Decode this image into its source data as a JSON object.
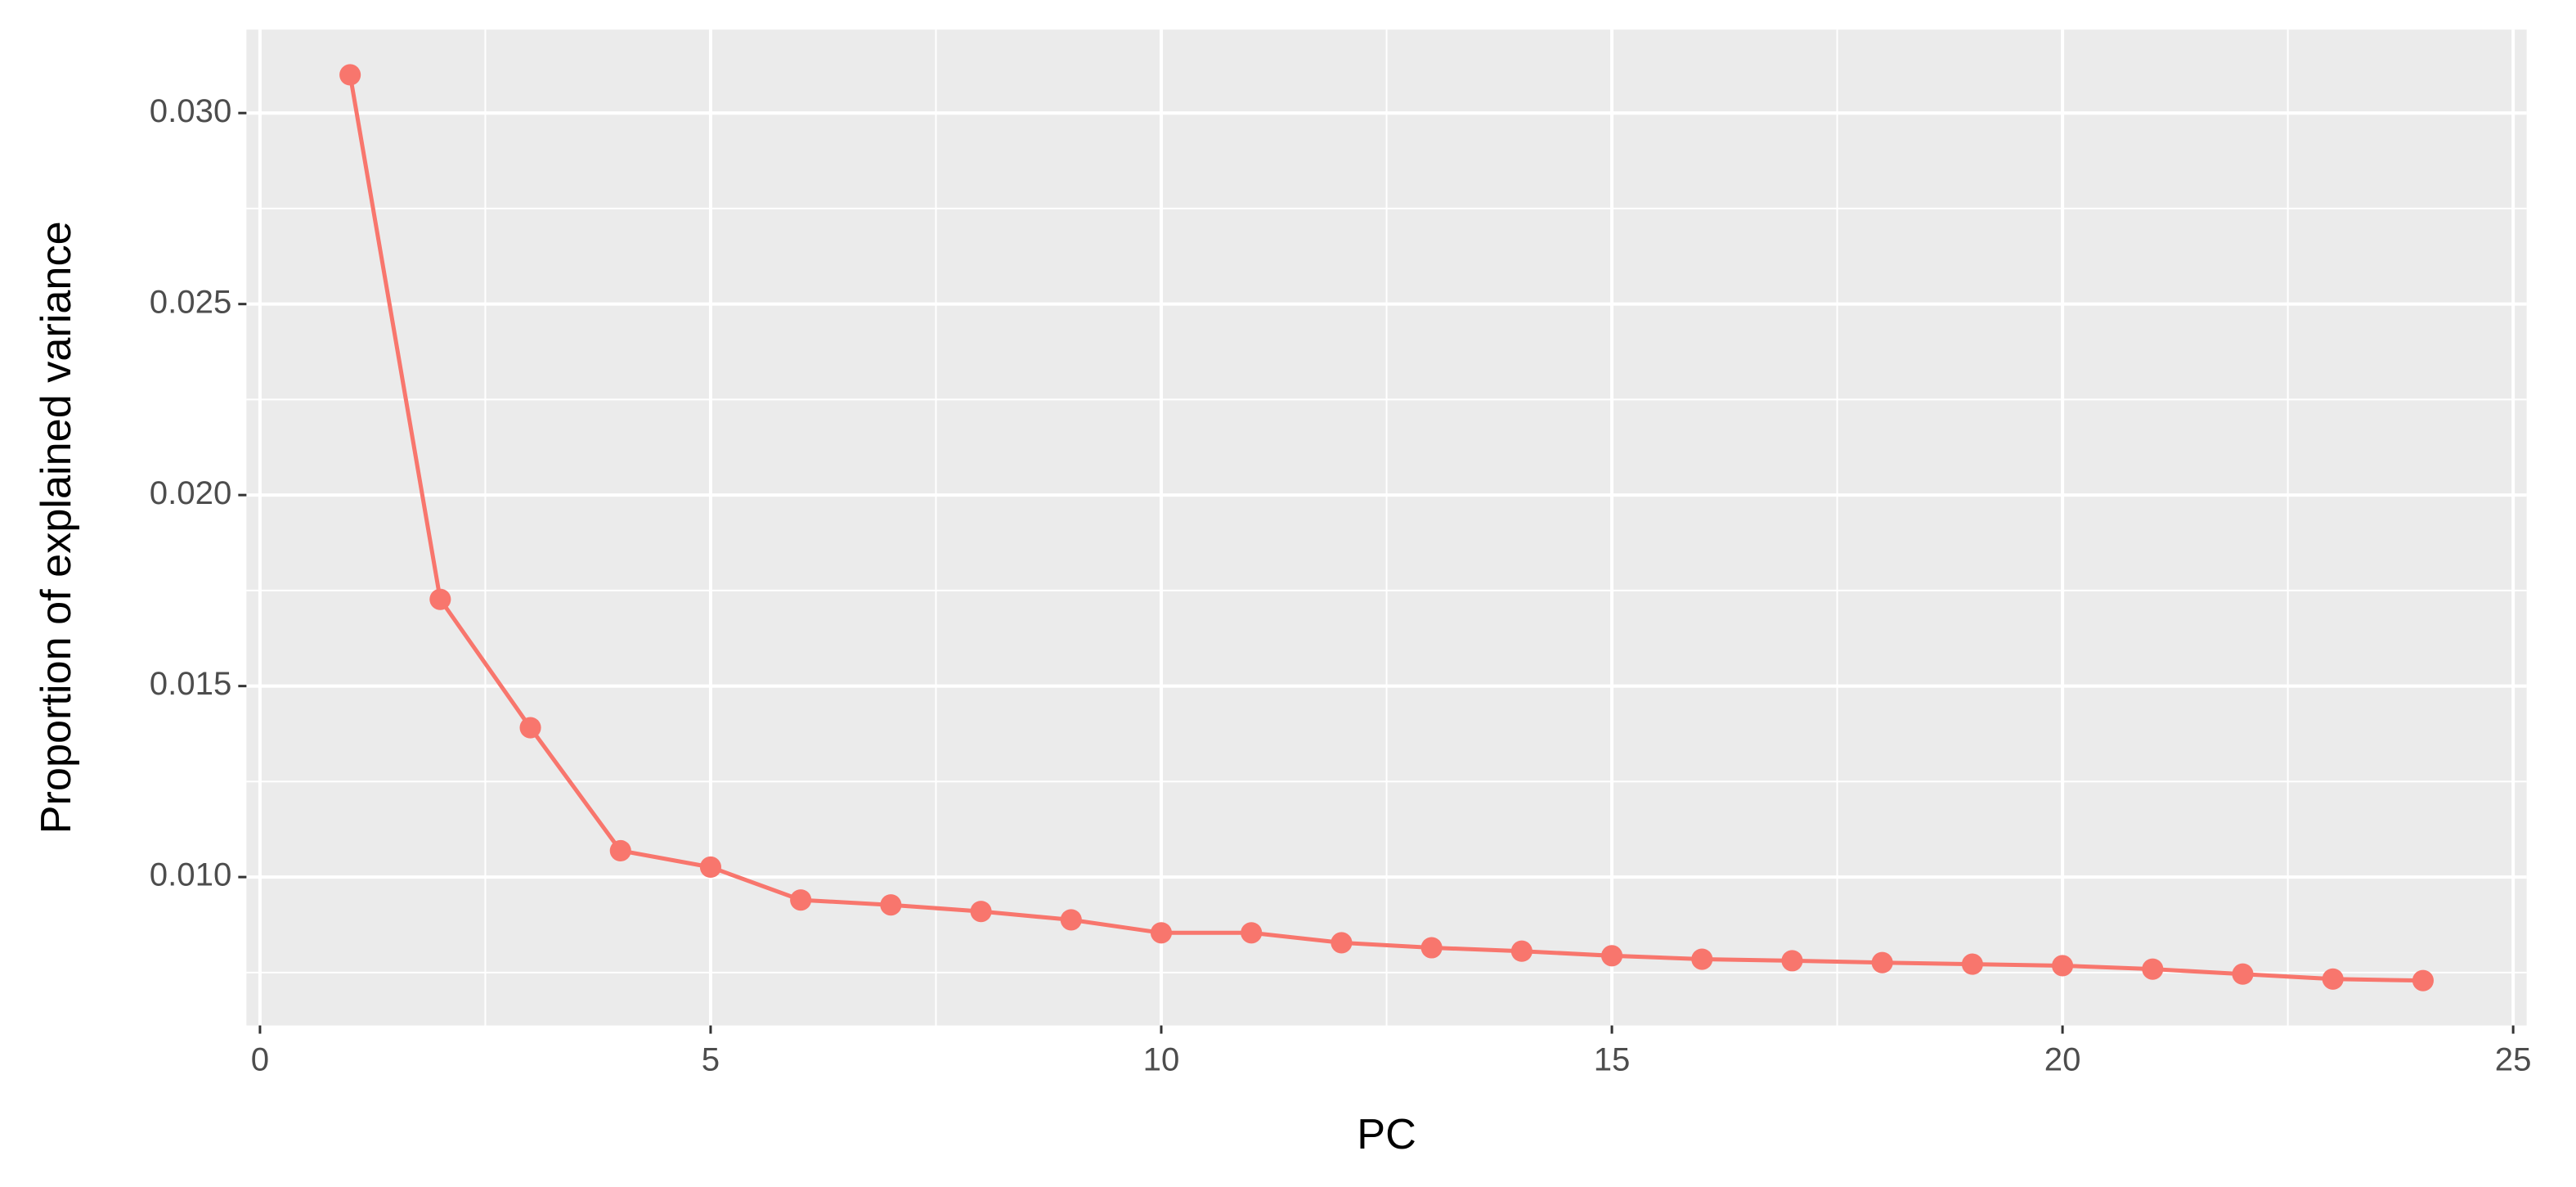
{
  "chart_data": {
    "type": "line",
    "x_label": "PC",
    "y_label": "Proportion of explained variance",
    "x": [
      1,
      2,
      3,
      4,
      5,
      6,
      7,
      8,
      9,
      10,
      11,
      12,
      13,
      14,
      15,
      16,
      17,
      18,
      19,
      20,
      21,
      22,
      23,
      24
    ],
    "series": [
      {
        "color": "#F8766D",
        "values": [
          0.031,
          0.01727,
          0.01391,
          0.01069,
          0.01026,
          0.0094,
          0.00927,
          0.0091,
          0.00888,
          0.00854,
          0.00854,
          0.00828,
          0.00815,
          0.00806,
          0.00794,
          0.00785,
          0.00781,
          0.00776,
          0.00772,
          0.00768,
          0.00759,
          0.00746,
          0.00733,
          0.00729
        ]
      }
    ],
    "xlim": [
      -0.15,
      25.15
    ],
    "ylim": [
      0.006115,
      0.032185
    ],
    "xticks": [
      0,
      5,
      10,
      15,
      20,
      25
    ],
    "yticks": [
      {
        "value": 0.01,
        "label": "0.010"
      },
      {
        "value": 0.015,
        "label": "0.015"
      },
      {
        "value": 0.02,
        "label": "0.020"
      },
      {
        "value": 0.025,
        "label": "0.025"
      },
      {
        "value": 0.03,
        "label": "0.030"
      }
    ],
    "grid": true,
    "minor_grid": true,
    "panel_color": "#EBEBEB"
  }
}
